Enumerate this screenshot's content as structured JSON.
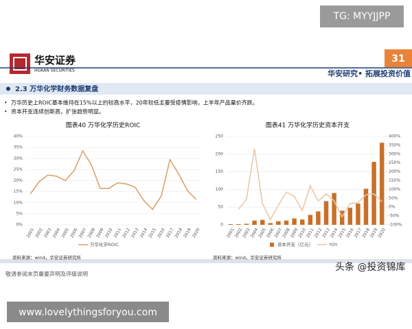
{
  "watermark_top": "TG: MYYJJPP",
  "header": {
    "logo_cn": "华安证券",
    "logo_en": "HUAAN SECURITIES",
    "page_number": "31",
    "slogan": "华安研究• 拓展投资价值"
  },
  "section": {
    "title": "2.3 万华化学财务数据复盘",
    "bullets": [
      "万华历史上ROIC基本维持在15%以上的较高水平，20年较低主要受疫情影响，上半年产品量价齐跌。",
      "资本开支连续创新高，扩张趋势明显。"
    ]
  },
  "chart_data": [
    {
      "type": "line",
      "title": "图表40 万华化学历史ROIC",
      "categories": [
        "2001",
        "2002",
        "2003",
        "2004",
        "2005",
        "2006",
        "2007",
        "2008",
        "2009",
        "2010",
        "2011",
        "2012",
        "2013",
        "2014",
        "2015",
        "2016",
        "2017",
        "2018",
        "2019",
        "2020"
      ],
      "series": [
        {
          "name": "万华化学ROIC",
          "color": "#dba36c",
          "values": [
            14,
            19.5,
            22.5,
            22,
            20,
            24.5,
            33.5,
            27,
            16.5,
            16.5,
            19,
            18.5,
            17,
            11,
            7,
            13,
            29.5,
            23,
            15.5,
            11.5
          ]
        }
      ],
      "ylim": [
        0,
        40
      ],
      "yticks": [
        {
          "value": 0,
          "label": "0%"
        },
        {
          "value": 5,
          "label": "5%"
        },
        {
          "value": 10,
          "label": "10%"
        },
        {
          "value": 15,
          "label": "15%"
        },
        {
          "value": 20,
          "label": "20%"
        },
        {
          "value": 25,
          "label": "25%"
        },
        {
          "value": 30,
          "label": "30%"
        },
        {
          "value": 35,
          "label": "35%"
        },
        {
          "value": 40,
          "label": "40%"
        }
      ],
      "source": "资料来源：wind，华安证券研究所"
    },
    {
      "type": "bar",
      "title": "图表41 万华化学历史资本开支",
      "categories": [
        "2001",
        "2002",
        "2003",
        "2004",
        "2005",
        "2006",
        "2007",
        "2008",
        "2009",
        "2010",
        "2011",
        "2012",
        "2013",
        "2014",
        "2015",
        "2016",
        "2017",
        "2018",
        "2019",
        "2020"
      ],
      "series": [
        {
          "name": "资本开支（亿元）",
          "color": "#c8702a",
          "values": [
            2,
            2,
            3,
            12,
            14,
            5,
            10,
            12,
            18,
            15,
            28,
            38,
            67,
            90,
            40,
            48,
            60,
            102,
            178,
            232
          ]
        },
        {
          "name": "YOY",
          "type": "line",
          "axis": "y2",
          "color": "#e8c9a8",
          "values": [
            null,
            -12,
            45,
            330,
            20,
            -70,
            10,
            85,
            60,
            -20,
            120,
            35,
            75,
            35,
            -55,
            20,
            25,
            70,
            75,
            30
          ]
        }
      ],
      "ylim": [
        0,
        250
      ],
      "yticks": [
        0,
        50,
        100,
        150,
        200,
        250
      ],
      "y2lim": [
        -100,
        400
      ],
      "y2ticks": [
        {
          "value": -100,
          "label": "-100%"
        },
        {
          "value": -50,
          "label": "-50%"
        },
        {
          "value": 0,
          "label": "0%"
        },
        {
          "value": 50,
          "label": "50%"
        },
        {
          "value": 100,
          "label": "100%"
        },
        {
          "value": 150,
          "label": "150%"
        },
        {
          "value": 200,
          "label": "200%"
        },
        {
          "value": 250,
          "label": "250%"
        },
        {
          "value": 300,
          "label": "300%"
        },
        {
          "value": 350,
          "label": "350%"
        },
        {
          "value": 400,
          "label": "400%"
        }
      ],
      "source": "资料来源：wind，华安证券研究所"
    }
  ],
  "footer": {
    "disclaimer": "敬请参阅末页重要声明及评级说明",
    "overlay": "头条 @投资锦库",
    "website": "www.lovelythingsforyou.com"
  }
}
